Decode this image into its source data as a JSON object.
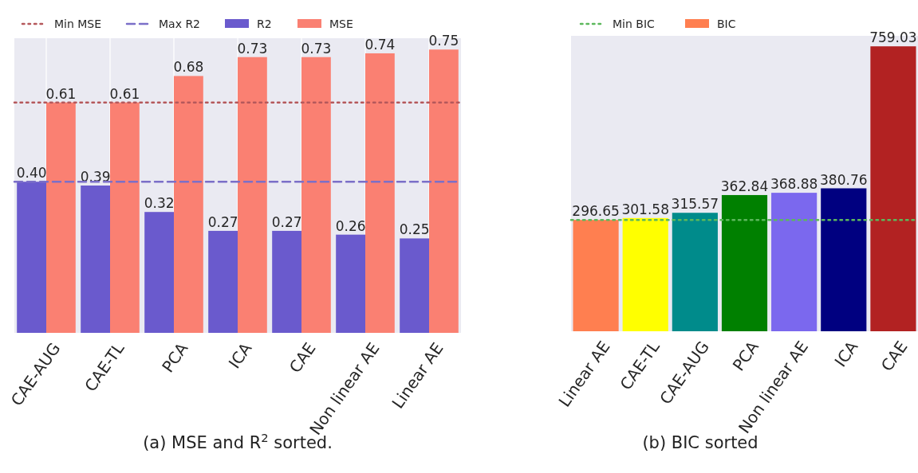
{
  "chart_data": [
    {
      "type": "bar",
      "categories": [
        "CAE-AUG",
        "CAE-TL",
        "PCA",
        "ICA",
        "CAE",
        "Non linear AE",
        "Linear AE"
      ],
      "series": [
        {
          "name": "R2",
          "color": "#6a5acd",
          "values": [
            0.4,
            0.39,
            0.32,
            0.27,
            0.27,
            0.26,
            0.25
          ],
          "value_labels": [
            "0.40",
            "0.39",
            "0.32",
            "0.27",
            "0.27",
            "0.26",
            "0.25"
          ]
        },
        {
          "name": "MSE",
          "color": "#fa8072",
          "values": [
            0.61,
            0.61,
            0.68,
            0.73,
            0.73,
            0.74,
            0.75
          ],
          "value_labels": [
            "0.61",
            "0.61",
            "0.68",
            "0.73",
            "0.73",
            "0.74",
            "0.75"
          ]
        }
      ],
      "ylim": [
        0,
        0.78
      ],
      "tick_labels": "x",
      "grid": "x",
      "legend": "top",
      "ref_lines": [
        {
          "axis": "y",
          "value": 0.61,
          "label": "Min MSE",
          "color": "#b5585b",
          "line_style": "dotted"
        },
        {
          "axis": "y",
          "value": 0.4,
          "label": "Max R2",
          "color": "#7b6fc8",
          "line_style": "dashed"
        }
      ],
      "annotations": [
        "(a) MSE and R$^{2}$ sorted."
      ]
    },
    {
      "type": "bar",
      "categories": [
        "Linear AE",
        "CAE-TL",
        "CAE-AUG",
        "PCA",
        "Non linear AE",
        "ICA",
        "CAE"
      ],
      "series": [
        {
          "name": "BIC",
          "color": "#ff7f50",
          "colors": [
            "#ff7f50",
            "#ffff00",
            "#008b8b",
            "#008000",
            "#7b68ee",
            "#000080",
            "#b22222"
          ],
          "values": [
            296.65,
            301.58,
            315.57,
            362.84,
            368.88,
            380.76,
            759.03
          ]
        }
      ],
      "ylim": [
        0,
        787
      ],
      "tick_labels": "x",
      "data_labels": true,
      "legend": "top",
      "ref_lines": [
        {
          "axis": "y",
          "value": 296.65,
          "label": "Min BIC",
          "color": "#5cb85c",
          "line_style": "dotted"
        }
      ],
      "annotations": [
        "(b) BIC sorted"
      ]
    }
  ]
}
